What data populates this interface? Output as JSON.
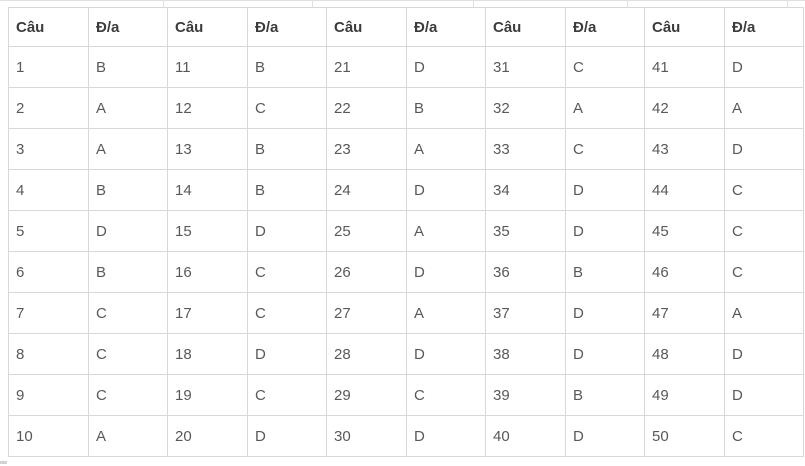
{
  "table": {
    "header_labels": [
      "Câu",
      "Đ/a",
      "Câu",
      "Đ/a",
      "Câu",
      "Đ/a",
      "Câu",
      "Đ/a",
      "Câu",
      "Đ/a"
    ],
    "rows": [
      [
        "1",
        "B",
        "11",
        "B",
        "21",
        "D",
        "31",
        "C",
        "41",
        "D"
      ],
      [
        "2",
        "A",
        "12",
        "C",
        "22",
        "B",
        "32",
        "A",
        "42",
        "A"
      ],
      [
        "3",
        "A",
        "13",
        "B",
        "23",
        "A",
        "33",
        "C",
        "43",
        "D"
      ],
      [
        "4",
        "B",
        "14",
        "B",
        "24",
        "D",
        "34",
        "D",
        "44",
        "C"
      ],
      [
        "5",
        "D",
        "15",
        "D",
        "25",
        "A",
        "35",
        "D",
        "45",
        "C"
      ],
      [
        "6",
        "B",
        "16",
        "C",
        "26",
        "D",
        "36",
        "B",
        "46",
        "C"
      ],
      [
        "7",
        "C",
        "17",
        "C",
        "27",
        "A",
        "37",
        "D",
        "47",
        "A"
      ],
      [
        "8",
        "C",
        "18",
        "D",
        "28",
        "D",
        "38",
        "D",
        "48",
        "D"
      ],
      [
        "9",
        "C",
        "19",
        "C",
        "29",
        "C",
        "39",
        "B",
        "49",
        "D"
      ],
      [
        "10",
        "A",
        "20",
        "D",
        "30",
        "D",
        "40",
        "D",
        "50",
        "C"
      ]
    ]
  },
  "colors": {
    "background": "#ffffff",
    "border": "#d8d8d8",
    "header_text": "#3c3c3c",
    "cell_text": "#58595b"
  }
}
